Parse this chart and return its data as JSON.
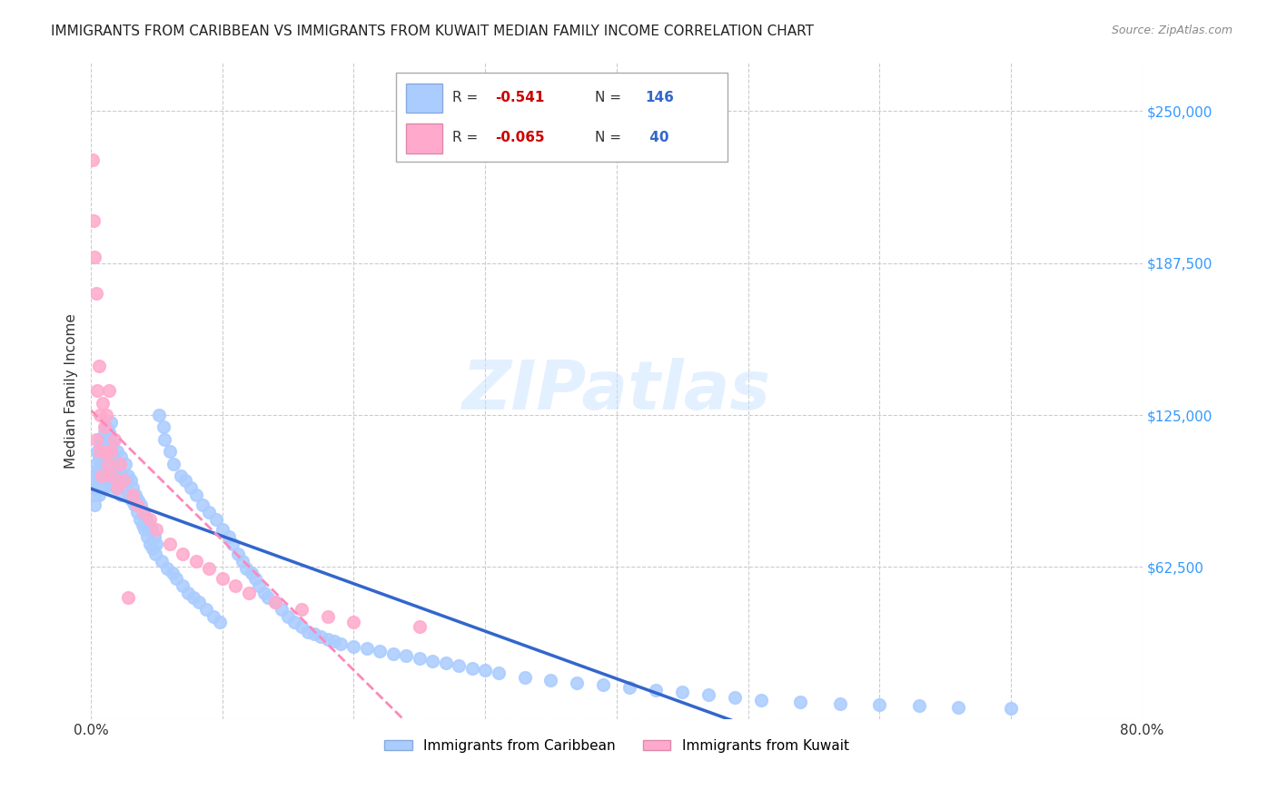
{
  "title": "IMMIGRANTS FROM CARIBBEAN VS IMMIGRANTS FROM KUWAIT MEDIAN FAMILY INCOME CORRELATION CHART",
  "source": "Source: ZipAtlas.com",
  "ylabel": "Median Family Income",
  "xlim": [
    0.0,
    0.8
  ],
  "ylim": [
    0,
    270000
  ],
  "yticks": [
    0,
    62500,
    125000,
    187500,
    250000
  ],
  "xticks": [
    0.0,
    0.1,
    0.2,
    0.3,
    0.4,
    0.5,
    0.6,
    0.7,
    0.8
  ],
  "color_caribbean": "#aaccff",
  "color_kuwait": "#ffaacc",
  "trendline_caribbean_color": "#3366cc",
  "trendline_kuwait_color": "#ff88bb",
  "caribbean_x": [
    0.001,
    0.002,
    0.003,
    0.003,
    0.004,
    0.004,
    0.005,
    0.005,
    0.005,
    0.006,
    0.006,
    0.006,
    0.007,
    0.007,
    0.007,
    0.008,
    0.008,
    0.008,
    0.009,
    0.009,
    0.01,
    0.01,
    0.01,
    0.011,
    0.011,
    0.012,
    0.012,
    0.012,
    0.013,
    0.013,
    0.014,
    0.014,
    0.015,
    0.015,
    0.016,
    0.016,
    0.017,
    0.018,
    0.018,
    0.019,
    0.02,
    0.02,
    0.021,
    0.022,
    0.023,
    0.023,
    0.024,
    0.025,
    0.026,
    0.027,
    0.028,
    0.029,
    0.03,
    0.031,
    0.032,
    0.033,
    0.034,
    0.035,
    0.036,
    0.037,
    0.038,
    0.039,
    0.04,
    0.041,
    0.042,
    0.043,
    0.044,
    0.045,
    0.046,
    0.047,
    0.048,
    0.049,
    0.05,
    0.052,
    0.054,
    0.055,
    0.056,
    0.058,
    0.06,
    0.062,
    0.063,
    0.065,
    0.068,
    0.07,
    0.072,
    0.074,
    0.076,
    0.078,
    0.08,
    0.082,
    0.085,
    0.088,
    0.09,
    0.093,
    0.095,
    0.098,
    0.1,
    0.105,
    0.108,
    0.112,
    0.115,
    0.118,
    0.122,
    0.125,
    0.128,
    0.132,
    0.135,
    0.14,
    0.145,
    0.15,
    0.155,
    0.16,
    0.165,
    0.17,
    0.175,
    0.18,
    0.185,
    0.19,
    0.2,
    0.21,
    0.22,
    0.23,
    0.24,
    0.25,
    0.26,
    0.27,
    0.28,
    0.29,
    0.3,
    0.31,
    0.33,
    0.35,
    0.37,
    0.39,
    0.41,
    0.43,
    0.45,
    0.47,
    0.49,
    0.51,
    0.54,
    0.57,
    0.6,
    0.63,
    0.66,
    0.7
  ],
  "caribbean_y": [
    100000,
    95000,
    88000,
    92000,
    105000,
    98000,
    110000,
    102000,
    95000,
    108000,
    100000,
    92000,
    115000,
    105000,
    98000,
    112000,
    108000,
    95000,
    110000,
    100000,
    118000,
    108000,
    95000,
    112000,
    100000,
    120000,
    110000,
    98000,
    115000,
    100000,
    118000,
    105000,
    122000,
    108000,
    112000,
    98000,
    115000,
    108000,
    95000,
    100000,
    110000,
    95000,
    105000,
    98000,
    108000,
    92000,
    100000,
    95000,
    105000,
    98000,
    100000,
    92000,
    98000,
    90000,
    95000,
    88000,
    92000,
    85000,
    90000,
    82000,
    88000,
    80000,
    85000,
    78000,
    82000,
    75000,
    80000,
    72000,
    78000,
    70000,
    75000,
    68000,
    72000,
    125000,
    65000,
    120000,
    115000,
    62000,
    110000,
    60000,
    105000,
    58000,
    100000,
    55000,
    98000,
    52000,
    95000,
    50000,
    92000,
    48000,
    88000,
    45000,
    85000,
    42000,
    82000,
    40000,
    78000,
    75000,
    72000,
    68000,
    65000,
    62000,
    60000,
    58000,
    55000,
    52000,
    50000,
    48000,
    45000,
    42000,
    40000,
    38000,
    36000,
    35000,
    34000,
    33000,
    32000,
    31000,
    30000,
    29000,
    28000,
    27000,
    26000,
    25000,
    24000,
    23000,
    22000,
    21000,
    20000,
    19000,
    17000,
    16000,
    15000,
    14000,
    13000,
    12000,
    11000,
    10000,
    9000,
    8000,
    7000,
    6500,
    6000,
    5500,
    5000,
    4500
  ],
  "kuwait_x": [
    0.001,
    0.002,
    0.003,
    0.004,
    0.004,
    0.005,
    0.006,
    0.007,
    0.007,
    0.008,
    0.009,
    0.01,
    0.011,
    0.012,
    0.013,
    0.014,
    0.015,
    0.016,
    0.018,
    0.02,
    0.022,
    0.025,
    0.028,
    0.032,
    0.035,
    0.04,
    0.045,
    0.05,
    0.06,
    0.07,
    0.08,
    0.09,
    0.1,
    0.11,
    0.12,
    0.14,
    0.16,
    0.18,
    0.2,
    0.25
  ],
  "kuwait_y": [
    230000,
    205000,
    190000,
    175000,
    115000,
    135000,
    145000,
    125000,
    110000,
    100000,
    130000,
    120000,
    110000,
    125000,
    105000,
    135000,
    110000,
    100000,
    115000,
    95000,
    105000,
    98000,
    50000,
    92000,
    88000,
    85000,
    82000,
    78000,
    72000,
    68000,
    65000,
    62000,
    58000,
    55000,
    52000,
    48000,
    45000,
    42000,
    40000,
    38000
  ]
}
